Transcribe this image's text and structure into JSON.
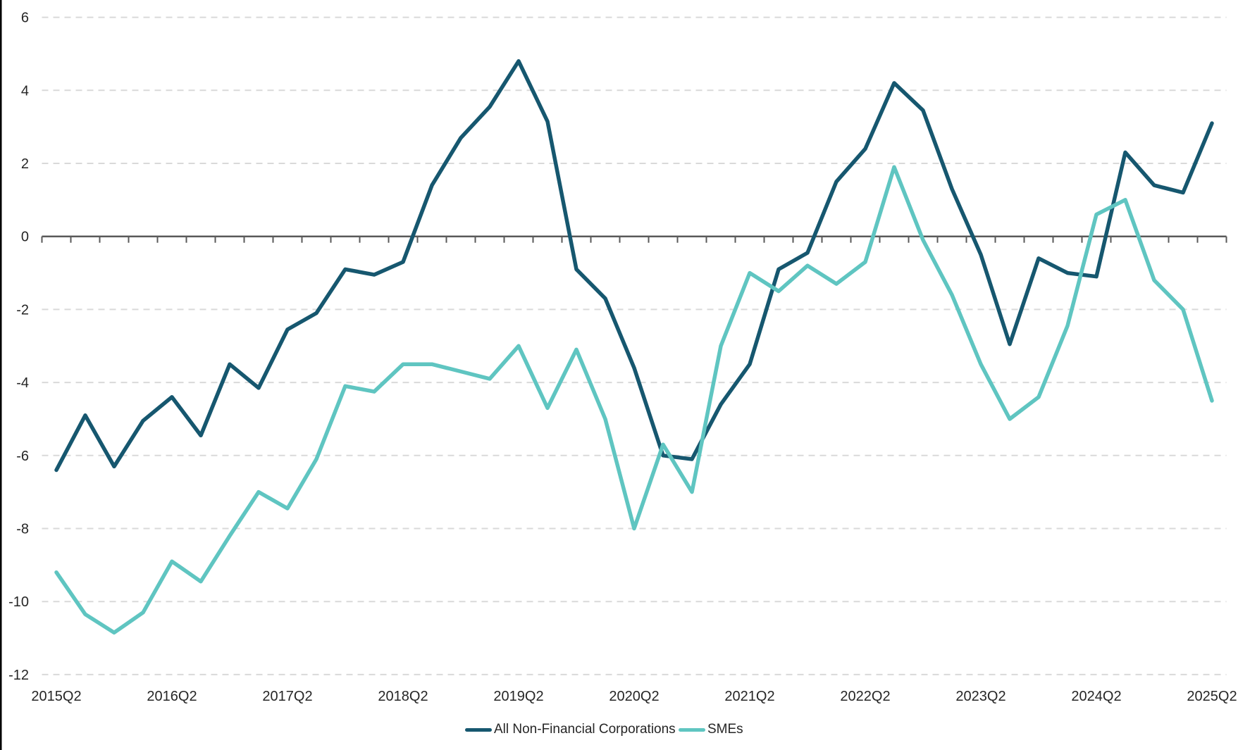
{
  "chart_data": {
    "type": "line",
    "title": "",
    "xlabel": "",
    "ylabel": "",
    "ylim": [
      -12,
      6
    ],
    "y_ticks": [
      6,
      4,
      2,
      0,
      -2,
      -4,
      -6,
      -8,
      -10,
      -12
    ],
    "x_tick_labels": [
      "2015Q2",
      "2016Q2",
      "2017Q2",
      "2018Q2",
      "2019Q2",
      "2020Q2",
      "2021Q2",
      "2022Q2",
      "2023Q2",
      "2024Q2",
      "2025Q2"
    ],
    "grid": "horizontal-dashed",
    "legend_position": "bottom-center",
    "categories": [
      "2015Q2",
      "2015Q3",
      "2015Q4",
      "2016Q1",
      "2016Q2",
      "2016Q3",
      "2016Q4",
      "2017Q1",
      "2017Q2",
      "2017Q3",
      "2017Q4",
      "2018Q1",
      "2018Q2",
      "2018Q3",
      "2018Q4",
      "2019Q1",
      "2019Q2",
      "2019Q3",
      "2019Q4",
      "2020Q1",
      "2020Q2",
      "2020Q3",
      "2020Q4",
      "2021Q1",
      "2021Q2",
      "2021Q3",
      "2021Q4",
      "2022Q1",
      "2022Q2",
      "2022Q3",
      "2022Q4",
      "2023Q1",
      "2023Q2",
      "2023Q3",
      "2023Q4",
      "2024Q1",
      "2024Q2",
      "2024Q3",
      "2024Q4",
      "2025Q1",
      "2025Q2"
    ],
    "series": [
      {
        "name": "All Non-Financial Corporations",
        "color": "#16576F",
        "values": [
          -6.4,
          -4.9,
          -6.3,
          -5.05,
          -4.4,
          -5.45,
          -3.5,
          -4.15,
          -2.55,
          -2.1,
          -0.9,
          -1.05,
          -0.7,
          1.4,
          2.7,
          3.55,
          4.8,
          3.15,
          -0.9,
          -1.7,
          -3.6,
          -6.0,
          -6.1,
          -4.6,
          -3.5,
          -0.9,
          -0.45,
          1.5,
          2.4,
          4.2,
          3.45,
          1.3,
          -0.5,
          -2.95,
          -0.6,
          -1.0,
          -1.1,
          2.3,
          1.4,
          1.2,
          3.1
        ]
      },
      {
        "name": "SMEs",
        "color": "#5FC5C1",
        "values": [
          -9.2,
          -10.35,
          -10.85,
          -10.3,
          -8.9,
          -9.45,
          -8.2,
          -7.0,
          -7.45,
          -6.1,
          -4.1,
          -4.25,
          -3.5,
          -3.5,
          -3.7,
          -3.9,
          -3.0,
          -4.7,
          -3.1,
          -5.0,
          -8.0,
          -5.7,
          -7.0,
          -3.0,
          -1.0,
          -1.5,
          -0.8,
          -1.3,
          -0.7,
          1.9,
          -0.1,
          -1.6,
          -3.5,
          -5.0,
          -4.4,
          -2.45,
          0.6,
          1.0,
          -1.2,
          -2.0,
          -4.5
        ]
      }
    ],
    "colors": {
      "axis": "#595959",
      "gridline": "#D9D9D9",
      "text": "#262626",
      "border": "#000000"
    }
  },
  "legend": {
    "items": [
      {
        "label": "All Non-Financial Corporations",
        "color": "#16576F"
      },
      {
        "label": "SMEs",
        "color": "#5FC5C1"
      }
    ]
  }
}
